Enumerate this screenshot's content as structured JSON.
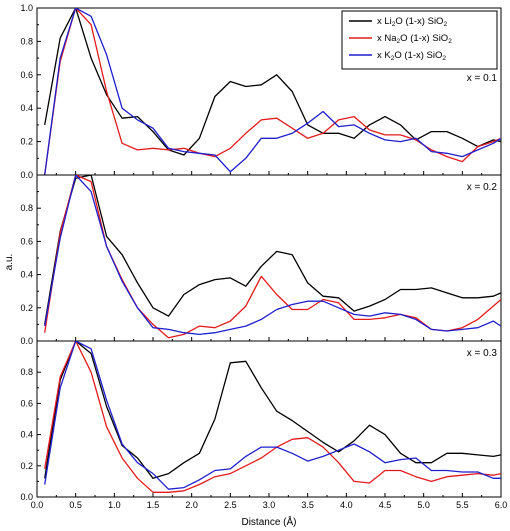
{
  "chart_data": {
    "type": "line",
    "xlabel": "Distance (Å)",
    "ylabel": "a.u.",
    "xlim": [
      0.0,
      6.0
    ],
    "ylim": [
      0.0,
      1.0
    ],
    "x_ticks": [
      "0.0",
      "0.5",
      "1.0",
      "1.5",
      "2.0",
      "2.5",
      "3.0",
      "3.5",
      "4.0",
      "4.5",
      "5.0",
      "5.5",
      "6.0"
    ],
    "y_ticks_top": [
      "0.0",
      "0.2",
      "0.4",
      "0.6",
      "0.8",
      "1.0"
    ],
    "y_ticks_lower": [
      "0.0",
      "0.2",
      "0.4",
      "0.6",
      "0.8"
    ],
    "legend": {
      "position": "top-right",
      "entries": [
        {
          "prefix": "x Li",
          "sub": "2",
          "mid": "O (1-x) SiO",
          "sub2": "2",
          "color": "#000000"
        },
        {
          "prefix": "x Na",
          "sub": "2",
          "mid": "O (1-x) SiO",
          "sub2": "2",
          "color": "#e41a1c"
        },
        {
          "prefix": "x K",
          "sub": "2",
          "mid": "O (1-x) SiO",
          "sub2": "2",
          "color": "#1f1fcf"
        }
      ]
    },
    "panels": [
      {
        "label": "x = 0.1",
        "series": [
          {
            "color": "#000000",
            "x": [
              0.1,
              0.3,
              0.5,
              0.7,
              0.9,
              1.1,
              1.3,
              1.5,
              1.7,
              1.9,
              2.1,
              2.3,
              2.5,
              2.7,
              2.9,
              3.1,
              3.3,
              3.5,
              3.7,
              3.9,
              4.1,
              4.3,
              4.5,
              4.7,
              4.9,
              5.1,
              5.3,
              5.5,
              5.7,
              5.9,
              6.0
            ],
            "y": [
              0.3,
              0.82,
              1.0,
              0.7,
              0.48,
              0.34,
              0.35,
              0.26,
              0.15,
              0.12,
              0.22,
              0.47,
              0.56,
              0.53,
              0.54,
              0.6,
              0.5,
              0.3,
              0.25,
              0.25,
              0.22,
              0.3,
              0.35,
              0.3,
              0.21,
              0.26,
              0.26,
              0.22,
              0.17,
              0.21,
              0.2
            ]
          },
          {
            "color": "#e41a1c",
            "x": [
              0.1,
              0.3,
              0.5,
              0.7,
              0.9,
              1.1,
              1.3,
              1.5,
              1.7,
              1.9,
              2.1,
              2.3,
              2.5,
              2.7,
              2.9,
              3.1,
              3.3,
              3.5,
              3.7,
              3.9,
              4.1,
              4.3,
              4.5,
              4.7,
              4.9,
              5.1,
              5.3,
              5.5,
              5.7,
              5.9,
              6.0
            ],
            "y": [
              0.0,
              0.68,
              1.0,
              0.9,
              0.5,
              0.19,
              0.15,
              0.16,
              0.15,
              0.16,
              0.13,
              0.11,
              0.16,
              0.25,
              0.33,
              0.34,
              0.28,
              0.22,
              0.25,
              0.33,
              0.35,
              0.27,
              0.24,
              0.24,
              0.21,
              0.15,
              0.11,
              0.08,
              0.17,
              0.2,
              0.22
            ]
          },
          {
            "color": "#1f1fcf",
            "x": [
              0.1,
              0.3,
              0.5,
              0.7,
              0.9,
              1.1,
              1.3,
              1.5,
              1.7,
              1.9,
              2.1,
              2.3,
              2.5,
              2.7,
              2.9,
              3.1,
              3.3,
              3.5,
              3.7,
              3.9,
              4.1,
              4.3,
              4.5,
              4.7,
              4.9,
              5.1,
              5.3,
              5.5,
              5.7,
              5.9,
              6.0
            ],
            "y": [
              0.0,
              0.7,
              1.0,
              0.95,
              0.72,
              0.4,
              0.33,
              0.28,
              0.16,
              0.14,
              0.13,
              0.12,
              0.02,
              0.1,
              0.22,
              0.22,
              0.25,
              0.31,
              0.38,
              0.29,
              0.3,
              0.25,
              0.21,
              0.2,
              0.22,
              0.14,
              0.13,
              0.11,
              0.15,
              0.19,
              0.22
            ]
          }
        ]
      },
      {
        "label": "x = 0.2",
        "series": [
          {
            "color": "#000000",
            "x": [
              0.1,
              0.3,
              0.5,
              0.7,
              0.9,
              1.1,
              1.3,
              1.5,
              1.7,
              1.9,
              2.1,
              2.3,
              2.5,
              2.7,
              2.9,
              3.1,
              3.3,
              3.5,
              3.7,
              3.9,
              4.1,
              4.3,
              4.5,
              4.7,
              4.9,
              5.1,
              5.3,
              5.5,
              5.7,
              5.9,
              6.0
            ],
            "y": [
              0.1,
              0.66,
              0.98,
              1.0,
              0.63,
              0.52,
              0.35,
              0.2,
              0.15,
              0.28,
              0.34,
              0.37,
              0.38,
              0.33,
              0.45,
              0.54,
              0.52,
              0.35,
              0.27,
              0.26,
              0.18,
              0.21,
              0.25,
              0.31,
              0.31,
              0.32,
              0.29,
              0.26,
              0.26,
              0.27,
              0.29
            ]
          },
          {
            "color": "#e41a1c",
            "x": [
              0.1,
              0.3,
              0.5,
              0.7,
              0.9,
              1.1,
              1.3,
              1.5,
              1.7,
              1.9,
              2.1,
              2.3,
              2.5,
              2.7,
              2.9,
              3.1,
              3.3,
              3.5,
              3.7,
              3.9,
              4.1,
              4.3,
              4.5,
              4.7,
              4.9,
              5.1,
              5.3,
              5.5,
              5.7,
              5.9,
              6.0
            ],
            "y": [
              0.05,
              0.65,
              1.0,
              0.96,
              0.57,
              0.37,
              0.2,
              0.1,
              0.02,
              0.04,
              0.09,
              0.08,
              0.12,
              0.21,
              0.39,
              0.28,
              0.19,
              0.19,
              0.25,
              0.23,
              0.13,
              0.13,
              0.14,
              0.16,
              0.14,
              0.07,
              0.06,
              0.08,
              0.13,
              0.21,
              0.25
            ]
          },
          {
            "color": "#1f1fcf",
            "x": [
              0.1,
              0.3,
              0.5,
              0.7,
              0.9,
              1.1,
              1.3,
              1.5,
              1.7,
              1.9,
              2.1,
              2.3,
              2.5,
              2.7,
              2.9,
              3.1,
              3.3,
              3.5,
              3.7,
              3.9,
              4.1,
              4.3,
              4.5,
              4.7,
              4.9,
              5.1,
              5.3,
              5.5,
              5.7,
              5.9,
              6.0
            ],
            "y": [
              0.09,
              0.62,
              1.0,
              0.9,
              0.57,
              0.36,
              0.2,
              0.08,
              0.07,
              0.05,
              0.04,
              0.05,
              0.07,
              0.09,
              0.13,
              0.19,
              0.22,
              0.24,
              0.24,
              0.2,
              0.16,
              0.15,
              0.17,
              0.16,
              0.13,
              0.07,
              0.06,
              0.07,
              0.08,
              0.12,
              0.09
            ]
          }
        ]
      },
      {
        "label": "x = 0.3",
        "series": [
          {
            "color": "#000000",
            "x": [
              0.1,
              0.3,
              0.5,
              0.7,
              0.9,
              1.1,
              1.3,
              1.5,
              1.7,
              1.9,
              2.1,
              2.3,
              2.5,
              2.7,
              2.9,
              3.1,
              3.3,
              3.5,
              3.7,
              3.9,
              4.1,
              4.3,
              4.5,
              4.7,
              4.9,
              5.1,
              5.3,
              5.5,
              5.7,
              5.9,
              6.0
            ],
            "y": [
              0.12,
              0.75,
              1.0,
              0.92,
              0.58,
              0.33,
              0.25,
              0.12,
              0.15,
              0.22,
              0.28,
              0.5,
              0.86,
              0.87,
              0.7,
              0.55,
              0.49,
              0.42,
              0.35,
              0.29,
              0.36,
              0.46,
              0.4,
              0.28,
              0.22,
              0.22,
              0.28,
              0.28,
              0.27,
              0.26,
              0.27
            ]
          },
          {
            "color": "#e41a1c",
            "x": [
              0.1,
              0.3,
              0.5,
              0.7,
              0.9,
              1.1,
              1.3,
              1.5,
              1.7,
              1.9,
              2.1,
              2.3,
              2.5,
              2.7,
              2.9,
              3.1,
              3.3,
              3.5,
              3.7,
              3.9,
              4.1,
              4.3,
              4.5,
              4.7,
              4.9,
              5.1,
              5.3,
              5.5,
              5.7,
              5.9,
              6.0
            ],
            "y": [
              0.18,
              0.77,
              1.0,
              0.8,
              0.45,
              0.25,
              0.12,
              0.03,
              0.03,
              0.04,
              0.08,
              0.13,
              0.15,
              0.2,
              0.25,
              0.32,
              0.37,
              0.38,
              0.32,
              0.22,
              0.1,
              0.09,
              0.17,
              0.17,
              0.13,
              0.1,
              0.13,
              0.14,
              0.15,
              0.14,
              0.15
            ]
          },
          {
            "color": "#1f1fcf",
            "x": [
              0.1,
              0.3,
              0.5,
              0.7,
              0.9,
              1.1,
              1.3,
              1.5,
              1.7,
              1.9,
              2.1,
              2.3,
              2.5,
              2.7,
              2.9,
              3.1,
              3.3,
              3.5,
              3.7,
              3.9,
              4.1,
              4.3,
              4.5,
              4.7,
              4.9,
              5.1,
              5.3,
              5.5,
              5.7,
              5.9,
              6.0
            ],
            "y": [
              0.08,
              0.7,
              1.0,
              0.95,
              0.62,
              0.34,
              0.22,
              0.15,
              0.05,
              0.06,
              0.11,
              0.17,
              0.18,
              0.26,
              0.32,
              0.32,
              0.28,
              0.23,
              0.26,
              0.3,
              0.34,
              0.29,
              0.22,
              0.24,
              0.25,
              0.17,
              0.17,
              0.16,
              0.16,
              0.12,
              0.12
            ]
          }
        ]
      }
    ]
  }
}
